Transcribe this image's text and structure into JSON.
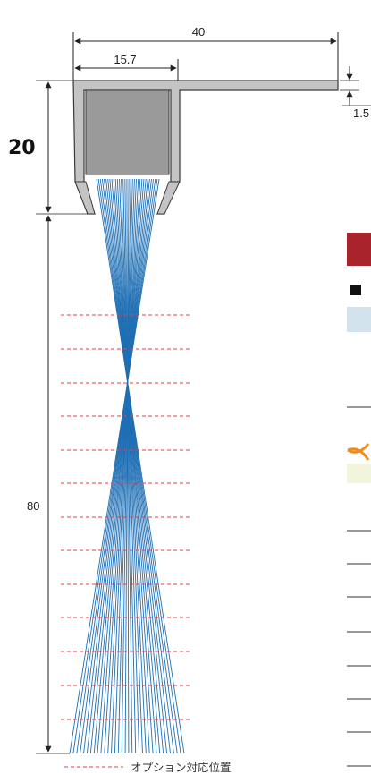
{
  "dimensions": {
    "overall_width": "40",
    "inner_width": "15.7",
    "flange_thickness": "1.5",
    "holder_height": "20",
    "bristle_length": "80"
  },
  "legend": {
    "option_position_label": "オプション対応位置"
  },
  "colors": {
    "holder_fill": "#c4c4c4",
    "holder_stroke": "#3a3a3a",
    "core_fill": "#9a9a9a",
    "bristle": "#1f6fb4",
    "option_line": "#e0413f",
    "swatch_red": "#a8232b",
    "swatch_black": "#111111",
    "swatch_blue": "#d3e3ee",
    "swatch_cream": "#f1f5dc",
    "cross_orange": "#f08c1e"
  },
  "side_panel": {
    "swatches": [
      "red",
      "black",
      "light-blue",
      "cream"
    ],
    "icons": [
      "cross-icon"
    ]
  }
}
